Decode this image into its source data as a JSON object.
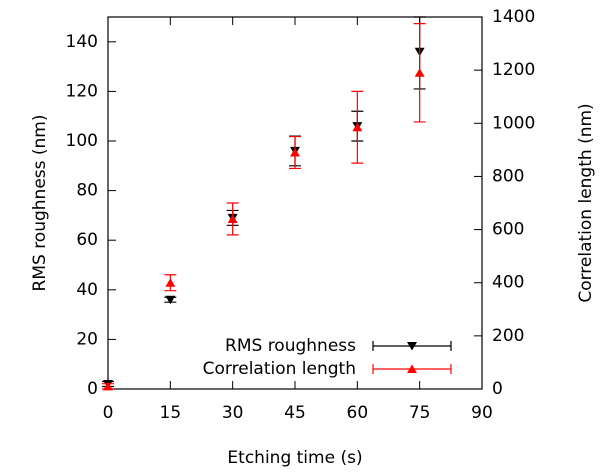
{
  "chart_data": {
    "type": "scatter",
    "x_label": "Etching time (s)",
    "y_label": "RMS roughness (nm)",
    "y2_label": "Correlation length (nm)",
    "xlim": [
      0,
      90
    ],
    "xticks": [
      0,
      15,
      30,
      45,
      60,
      75,
      90
    ],
    "ylim": [
      0,
      150
    ],
    "yticks": [
      0,
      20,
      40,
      60,
      80,
      100,
      120,
      140
    ],
    "y2lim": [
      0,
      1400
    ],
    "y2ticks": [
      0,
      200,
      400,
      600,
      800,
      1000,
      1200,
      1400
    ],
    "grid": false,
    "legend": "lower right",
    "series": [
      {
        "name": "RMS roughness",
        "color": "#000000",
        "marker": "triangle-down",
        "x": [
          0,
          15,
          30,
          45,
          60,
          75
        ],
        "values": [
          2,
          36,
          69,
          96,
          106,
          136
        ],
        "errors": [
          1,
          1,
          3,
          6,
          6,
          15
        ]
      },
      {
        "name": "Correlation length",
        "color": "#ff0000",
        "marker": "triangle-up",
        "axis": "y2",
        "x": [
          0,
          15,
          30,
          45,
          60,
          75
        ],
        "values": [
          10,
          400,
          640,
          890,
          985,
          1190
        ],
        "errors": [
          10,
          30,
          60,
          60,
          135,
          185
        ]
      }
    ]
  }
}
